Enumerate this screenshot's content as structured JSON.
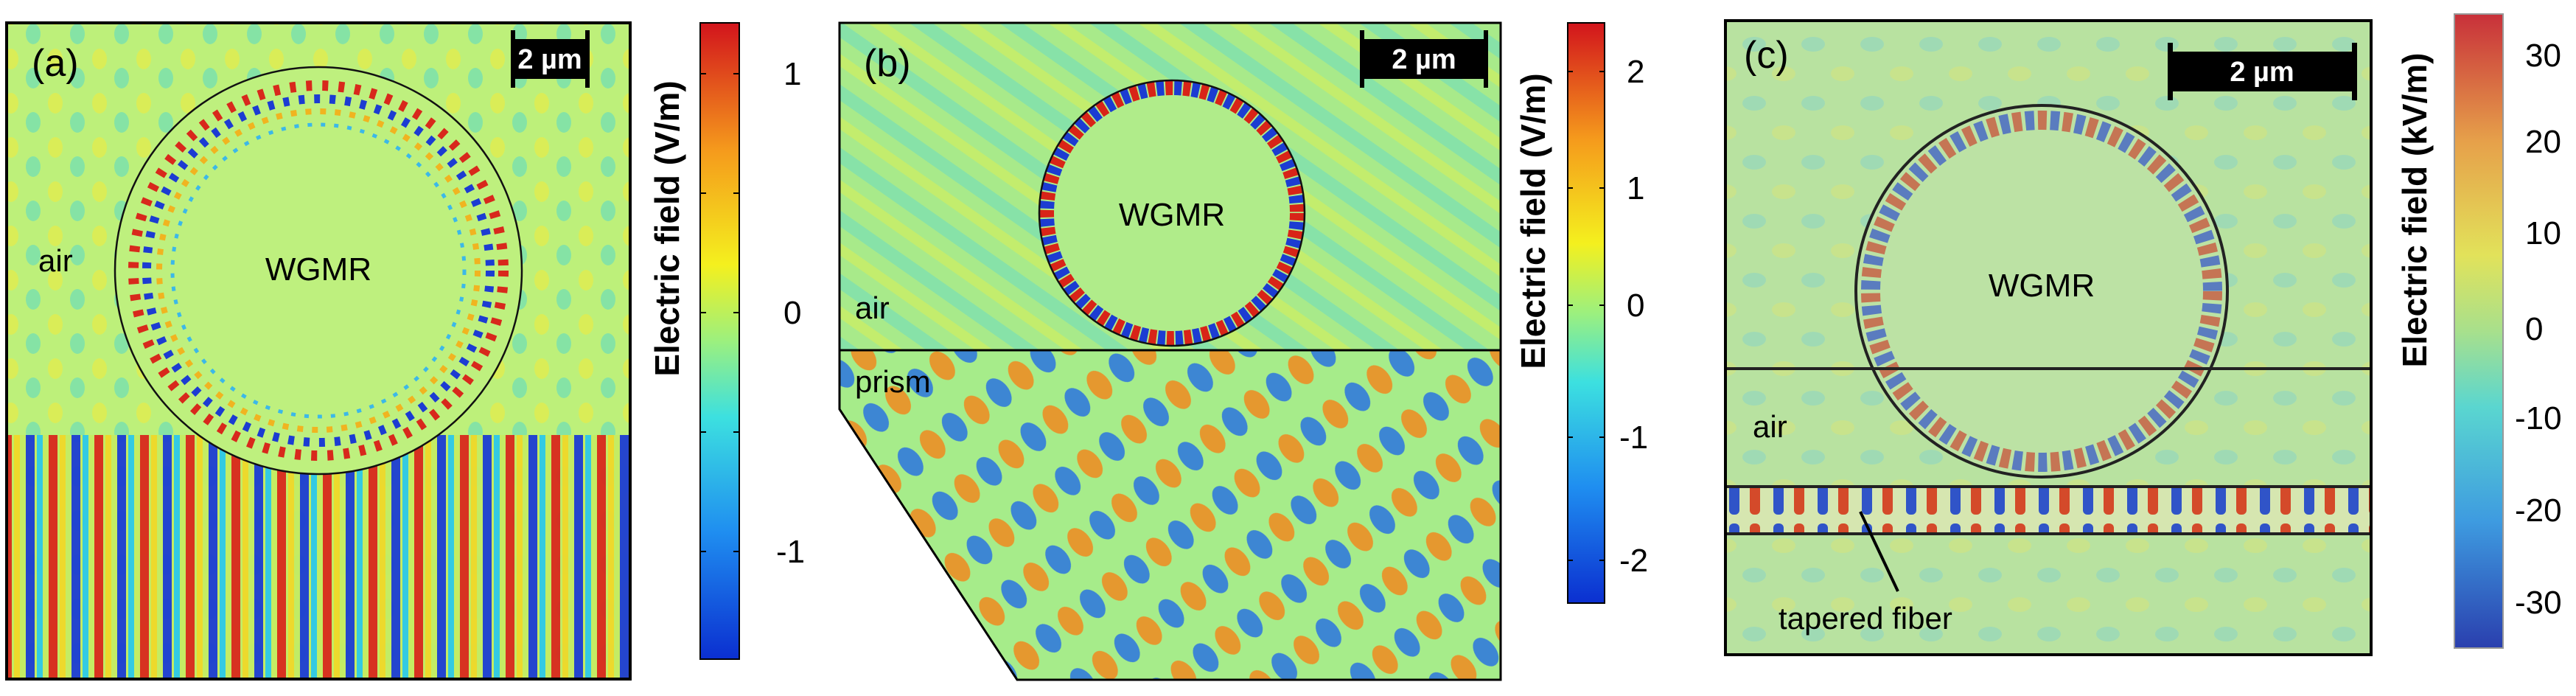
{
  "figure": {
    "panels": [
      {
        "id": "a",
        "panel_label": "(a)",
        "scale_bar": "2 µm",
        "resonator_label": "WGMR",
        "region_labels": [
          "air"
        ],
        "colorbar": {
          "label": "Electric field (V/m)",
          "ticks": [
            "1",
            "0",
            "-1"
          ]
        }
      },
      {
        "id": "b",
        "panel_label": "(b)",
        "scale_bar": "2 µm",
        "resonator_label": "WGMR",
        "region_labels": [
          "air",
          "prism"
        ],
        "colorbar": {
          "label": "Electric field (V/m)",
          "ticks": [
            "2",
            "1",
            "0",
            "-1",
            "-2"
          ]
        }
      },
      {
        "id": "c",
        "panel_label": "(c)",
        "scale_bar": "2 µm",
        "resonator_label": "WGMR",
        "region_labels": [
          "air",
          "tapered fiber"
        ],
        "colorbar": {
          "label": "Electric field (kV/m)",
          "ticks": [
            "30",
            "20",
            "10",
            "0",
            "-10",
            "-20",
            "-30"
          ]
        }
      }
    ],
    "colors": {
      "background_field": "#bff27c",
      "field_max": "#d7191c",
      "field_min": "#1a2fd6",
      "frame": "#000000"
    }
  }
}
